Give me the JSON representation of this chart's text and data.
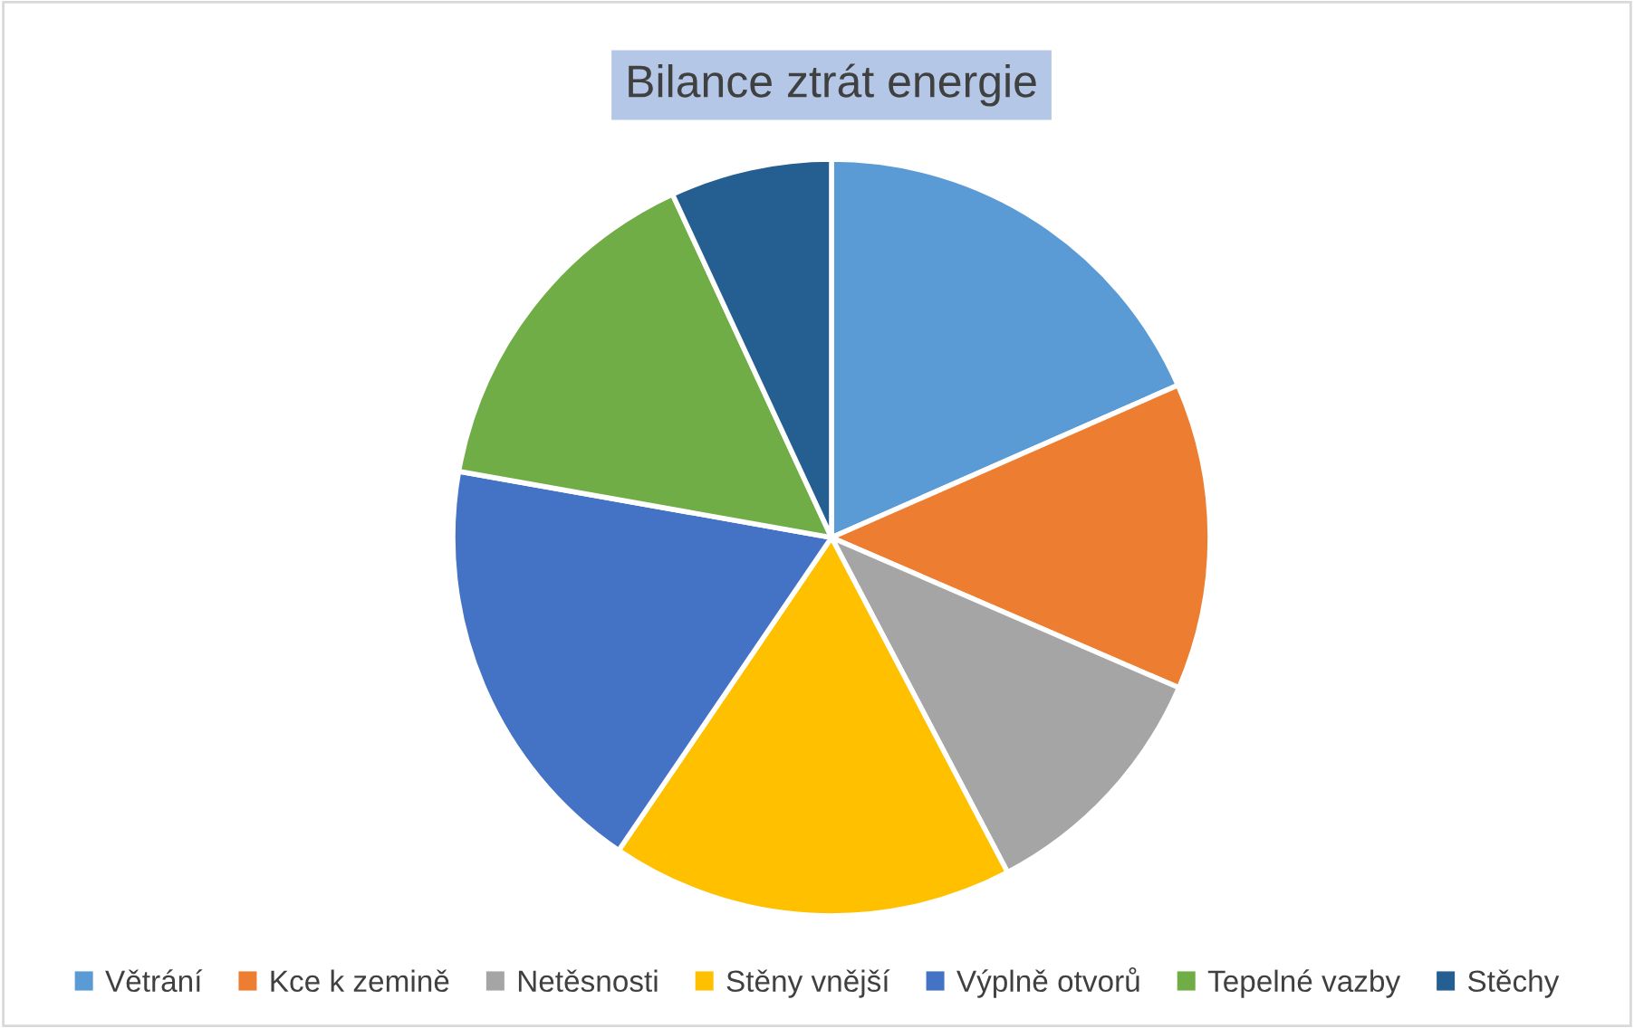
{
  "chart_data": {
    "type": "pie",
    "title": "Bilance ztrát energie",
    "categories": [
      "Větrání",
      "Kce k zemině",
      "Netěsnosti",
      "Stěny vnější",
      "Výplně otvorů",
      "Tepelné vazby",
      "Stěchy"
    ],
    "values": [
      18.4,
      13.1,
      10.8,
      17.2,
      18.3,
      15.3,
      6.9
    ],
    "colors": [
      "#5b9bd5",
      "#ed7d31",
      "#a5a5a5",
      "#ffc000",
      "#4472c4",
      "#70ad47",
      "#255e91"
    ],
    "legend": "bottom"
  }
}
